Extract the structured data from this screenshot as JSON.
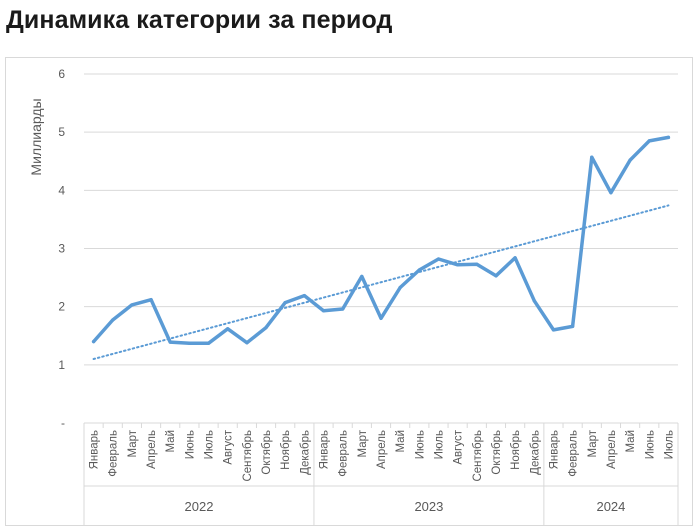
{
  "page": {
    "title": "Динамика категории за период"
  },
  "chart_data": {
    "type": "line",
    "ylabel": "Миллиарды",
    "ylim": [
      0,
      6
    ],
    "y_ticks": [
      {
        "value": 0,
        "label": "-"
      },
      {
        "value": 1,
        "label": "1"
      },
      {
        "value": 2,
        "label": "2"
      },
      {
        "value": 3,
        "label": "3"
      },
      {
        "value": 4,
        "label": "4"
      },
      {
        "value": 5,
        "label": "5"
      },
      {
        "value": 6,
        "label": "6"
      }
    ],
    "grid": true,
    "legend": "none",
    "colors": {
      "series": "#5b9bd5",
      "trend": "#5b9bd5",
      "grid": "#d9d9d9",
      "frame": "#d9d9d9"
    },
    "categories": [
      "Январь",
      "Февраль",
      "Март",
      "Апрель",
      "Май",
      "Июнь",
      "Июль",
      "Август",
      "Сентябрь",
      "Октябрь",
      "Ноябрь",
      "Декабрь",
      "Январь",
      "Февраль",
      "Март",
      "Апрель",
      "Май",
      "Июнь",
      "Июль",
      "Август",
      "Сентябрь",
      "Октябрь",
      "Ноябрь",
      "Декабрь",
      "Январь",
      "Февраль",
      "Март",
      "Апрель",
      "Май",
      "Июнь",
      "Июль"
    ],
    "groups": [
      {
        "label": "2022",
        "count": 12
      },
      {
        "label": "2023",
        "count": 12
      },
      {
        "label": "2024",
        "count": 7
      }
    ],
    "series": [
      {
        "values": [
          1.4,
          1.77,
          2.03,
          2.12,
          1.39,
          1.37,
          1.37,
          1.62,
          1.38,
          1.64,
          2.07,
          2.19,
          1.93,
          1.96,
          2.52,
          1.8,
          2.33,
          2.63,
          2.82,
          2.72,
          2.73,
          2.53,
          2.84,
          2.1,
          1.6,
          1.66,
          4.57,
          3.96,
          4.52,
          4.85,
          4.91
        ]
      }
    ],
    "trendline": {
      "type": "linear",
      "start": 1.1,
      "end": 3.74
    }
  }
}
